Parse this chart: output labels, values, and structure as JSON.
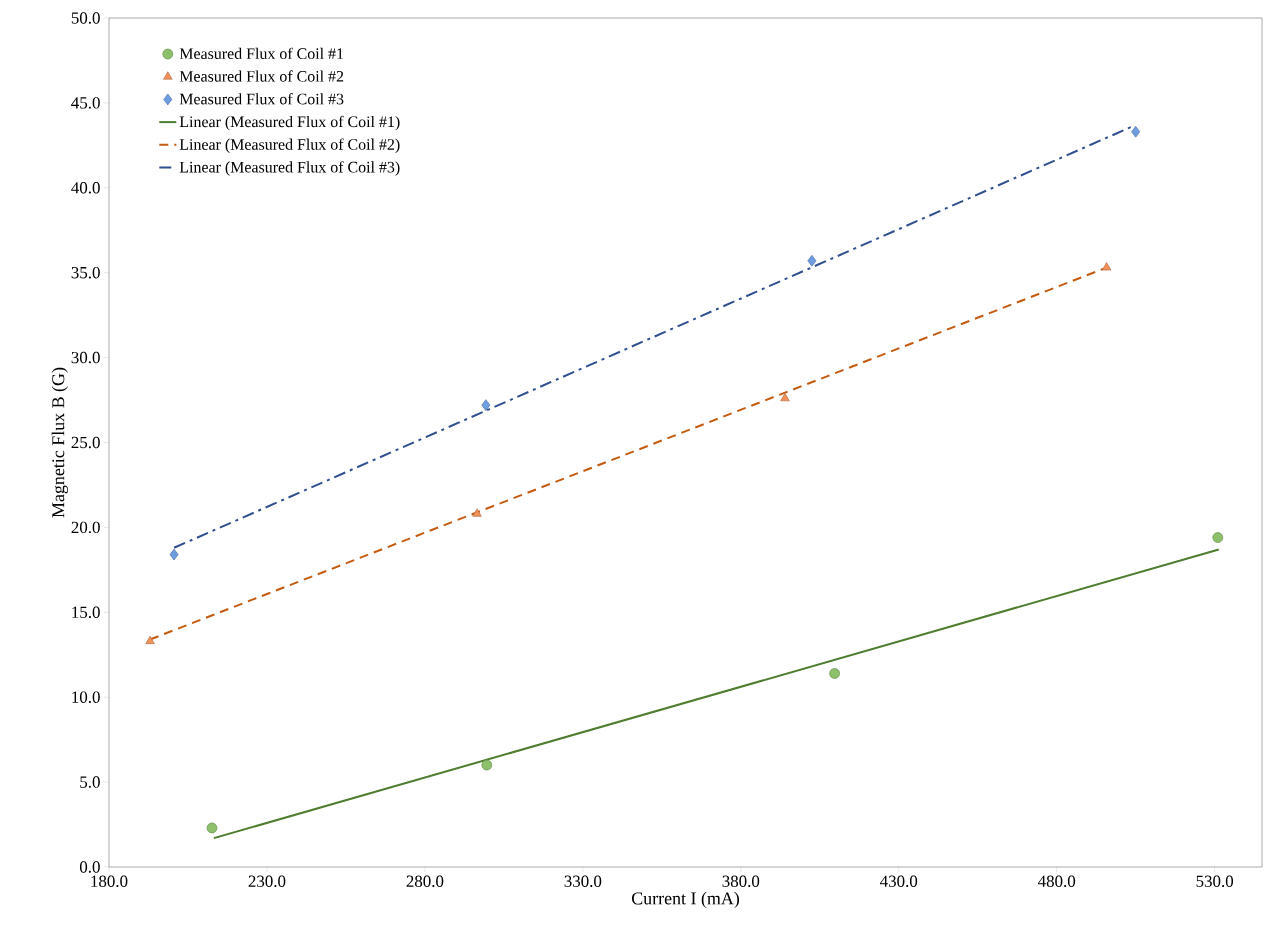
{
  "chart_data": {
    "type": "scatter",
    "xlabel": "Current I (mA)",
    "ylabel": "Magnetic Flux B (G)",
    "xlim": [
      180,
      545
    ],
    "ylim": [
      0,
      50
    ],
    "xticks": [
      {
        "value": 180,
        "label": "180.0"
      },
      {
        "value": 230,
        "label": "230.0"
      },
      {
        "value": 280,
        "label": "280.0"
      },
      {
        "value": 330,
        "label": "330.0"
      },
      {
        "value": 380,
        "label": "380.0"
      },
      {
        "value": 430,
        "label": "430.0"
      },
      {
        "value": 480,
        "label": "480.0"
      },
      {
        "value": 530,
        "label": "530.0"
      }
    ],
    "yticks": [
      {
        "value": 0,
        "label": "0.0"
      },
      {
        "value": 5,
        "label": "5.0"
      },
      {
        "value": 10,
        "label": "10.0"
      },
      {
        "value": 15,
        "label": "15.0"
      },
      {
        "value": 20,
        "label": "20.0"
      },
      {
        "value": 25,
        "label": "25.0"
      },
      {
        "value": 30,
        "label": "30.0"
      },
      {
        "value": 35,
        "label": "35.0"
      },
      {
        "value": 40,
        "label": "40.0"
      },
      {
        "value": 45,
        "label": "45.0"
      },
      {
        "value": 50,
        "label": "50.0"
      }
    ],
    "grid": false,
    "legend": "top left",
    "series": [
      {
        "name": "Measured Flux of Coil #1",
        "marker": "circle",
        "color": "#8cc06a",
        "x": [
          212.6,
          299.6,
          409.7,
          531
        ],
        "values": [
          2.3,
          6.0,
          11.4,
          19.4
        ]
      },
      {
        "name": "Measured Flux of Coil #2",
        "marker": "triangle",
        "color": "#f39058",
        "x": [
          193,
          296.5,
          394,
          495.8
        ],
        "values": [
          13.3,
          20.8,
          27.6,
          35.3
        ]
      },
      {
        "name": "Measured Flux of Coil #3",
        "marker": "diamond",
        "color": "#6d9de0",
        "x": [
          200.6,
          299.3,
          402.5,
          505
        ],
        "values": [
          18.4,
          27.2,
          35.7,
          43.3
        ]
      },
      {
        "name": "Linear  (Measured Flux of Coil #1)",
        "type": "line",
        "marker": "none",
        "line_style": "solid",
        "color": "#4e7d2f",
        "x": [
          213.2,
          531.3
        ],
        "values": [
          1.7,
          18.7
        ]
      },
      {
        "name": "Linear  (Measured Flux of Coil #2)",
        "type": "line",
        "marker": "none",
        "line_style": "dashed",
        "color": "#c55a11",
        "x": [
          193,
          495.8
        ],
        "values": [
          13.4,
          35.3
        ]
      },
      {
        "name": "Linear  (Measured Flux of Coil #3)",
        "type": "line",
        "marker": "none",
        "line_style": "dashdot",
        "color": "#2f4f8f",
        "x": [
          200.6,
          503.8
        ],
        "values": [
          18.8,
          43.6
        ]
      }
    ]
  }
}
